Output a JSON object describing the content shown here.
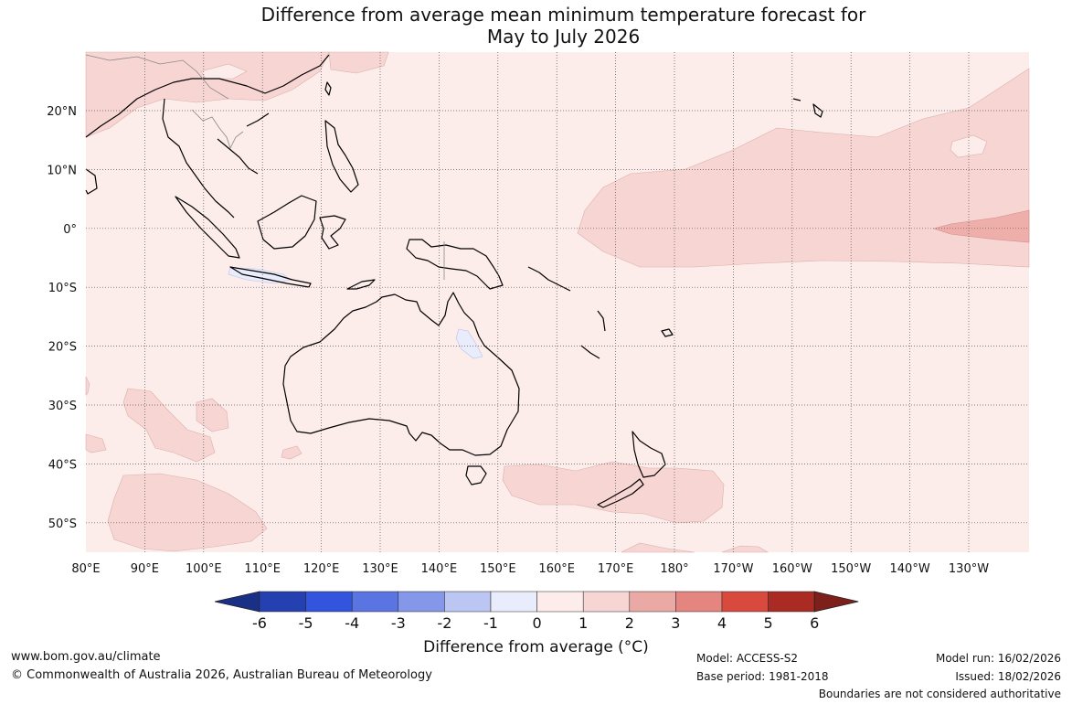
{
  "title_line1": "Difference from average mean minimum temperature forecast for",
  "title_line2": "May to July 2026",
  "lon_labels": [
    "80°E",
    "90°E",
    "100°E",
    "110°E",
    "120°E",
    "130°E",
    "140°E",
    "150°E",
    "160°E",
    "170°E",
    "180°",
    "170°W",
    "160°W",
    "150°W",
    "140°W",
    "130°W"
  ],
  "lat_labels": [
    "20°N",
    "10°N",
    "0°",
    "10°S",
    "20°S",
    "30°S",
    "40°S",
    "50°S"
  ],
  "colorbar": {
    "title": "Difference from average (°C)",
    "ticks": [
      "-6",
      "-5",
      "-4",
      "-3",
      "-2",
      "-1",
      "0",
      "1",
      "2",
      "3",
      "4",
      "5",
      "6"
    ],
    "colors": [
      "#1a2f86",
      "#2540b0",
      "#3355dd",
      "#5a74e2",
      "#8597e8",
      "#bcc6f2",
      "#e9ecfb",
      "#fcecea",
      "#f7d5d3",
      "#eaa9a4",
      "#e4867f",
      "#d84a3e",
      "#aa2a24",
      "#7d1f1a"
    ]
  },
  "legend": {
    "site": "www.bom.gov.au/climate",
    "copyright": "© Commonwealth of Australia 2026, Australian Bureau of Meteorology",
    "model": "Model: ACCESS-S2",
    "base_period": "Base period: 1981-2018",
    "model_run": "Model run: 16/02/2026",
    "issued": "Issued: 18/02/2026",
    "disclaimer": "Boundaries are not considered authoritative"
  },
  "anomaly_colors": {
    "background": "#fcecea",
    "warm_1_2": "#f7d5d3",
    "warm_2_3": "#eeafab",
    "cool_0_1": "#e9ecfb"
  }
}
